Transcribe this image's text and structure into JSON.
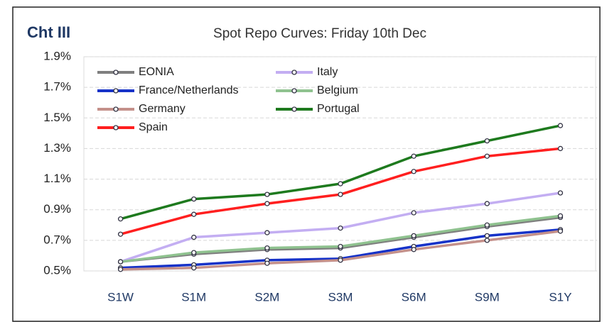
{
  "chart_data": {
    "type": "line",
    "chart_label": "Cht III",
    "title": "Spot Repo Curves: Friday 10th Dec",
    "categories": [
      "S1W",
      "S1M",
      "S2M",
      "S3M",
      "S6M",
      "S9M",
      "S1Y"
    ],
    "ylim": [
      0.5,
      1.9
    ],
    "yticks": [
      {
        "value": 0.5,
        "label": "0.5%"
      },
      {
        "value": 0.7,
        "label": "0.7%"
      },
      {
        "value": 0.9,
        "label": "0.9%"
      },
      {
        "value": 1.1,
        "label": "1.1%"
      },
      {
        "value": 1.3,
        "label": "1.3%"
      },
      {
        "value": 1.5,
        "label": "1.5%"
      },
      {
        "value": 1.7,
        "label": "1.7%"
      },
      {
        "value": 1.9,
        "label": "1.9%"
      }
    ],
    "grid": true,
    "legend": "top-left",
    "series": [
      {
        "name": "EONIA",
        "color": "#7f7f7f",
        "values": [
          0.56,
          0.61,
          0.64,
          0.65,
          0.72,
          0.79,
          0.85
        ]
      },
      {
        "name": "Italy",
        "color": "#c3aef2",
        "values": [
          0.56,
          0.72,
          0.75,
          0.78,
          0.88,
          0.94,
          1.01
        ]
      },
      {
        "name": "France/Netherlands",
        "color": "#1632c8",
        "values": [
          0.52,
          0.54,
          0.57,
          0.58,
          0.66,
          0.73,
          0.77
        ]
      },
      {
        "name": "Belgium",
        "color": "#8fc28f",
        "values": [
          0.56,
          0.62,
          0.65,
          0.66,
          0.73,
          0.8,
          0.86
        ]
      },
      {
        "name": "Germany",
        "color": "#c4908a",
        "values": [
          0.51,
          0.52,
          0.55,
          0.57,
          0.64,
          0.7,
          0.76
        ]
      },
      {
        "name": "Portugal",
        "color": "#1e7a1e",
        "values": [
          0.84,
          0.97,
          1.0,
          1.07,
          1.25,
          1.35,
          1.45
        ]
      },
      {
        "name": "Spain",
        "color": "#ff1f1f",
        "values": [
          0.74,
          0.87,
          0.94,
          1.0,
          1.15,
          1.25,
          1.3
        ]
      }
    ]
  }
}
